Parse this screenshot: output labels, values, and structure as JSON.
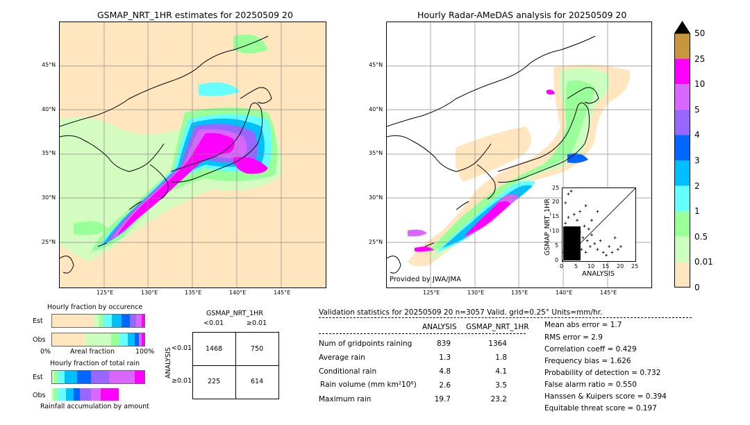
{
  "left_map": {
    "title": "GSMAP_NRT_1HR estimates for 20250509 20",
    "lat_labels": [
      "45°N",
      "40°N",
      "35°N",
      "30°N",
      "25°N"
    ],
    "lon_labels": [
      "125°E",
      "130°E",
      "135°E",
      "140°E",
      "145°E"
    ]
  },
  "right_map": {
    "title": "Hourly Radar-AMeDAS analysis for 20250509 20",
    "lat_labels": [
      "45°N",
      "40°N",
      "35°N",
      "30°N",
      "25°N"
    ],
    "lon_labels": [
      "125°E",
      "130°E",
      "135°E",
      "140°E",
      "145°E"
    ],
    "credit": "Provided by JWA/JMA"
  },
  "colorbar": {
    "labels": [
      "50",
      "25",
      "10",
      "5",
      "4",
      "3",
      "2",
      "1",
      "0.5",
      "0.01",
      "0"
    ],
    "colors": [
      "#c8963c",
      "#ff00ff",
      "#d966ff",
      "#9966ff",
      "#0066ff",
      "#00bfff",
      "#66ffff",
      "#99ff99",
      "#ccffbf",
      "#ffe6bf"
    ]
  },
  "scatter": {
    "ylabel": "GSMAP_NRT_1HR",
    "xlabel": "ANALYSIS",
    "ticks": [
      "0",
      "5",
      "10",
      "15",
      "20",
      "25"
    ]
  },
  "occurrence": {
    "title": "Hourly fraction by occurence",
    "rows": [
      "Est",
      "Obs"
    ],
    "axis_left": "0%",
    "axis_mid": "Areal fraction",
    "axis_right": "100%"
  },
  "total_rain": {
    "title": "Hourly fraction of total rain",
    "rows": [
      "Est",
      "Obs"
    ],
    "footer": "Rainfall accumulation by amount"
  },
  "contingency": {
    "title": "GSMAP_NRT_1HR",
    "col_labels": [
      "<0.01",
      "≥0.01"
    ],
    "row_axis": "ANALYSIS",
    "row_labels": [
      "<0.01",
      "≥0.01"
    ],
    "cells": [
      [
        "1468",
        "750"
      ],
      [
        "225",
        "614"
      ]
    ]
  },
  "validation": {
    "header": "Validation statistics for 20250509 20  n=3057 Valid. grid=0.25° Units=mm/hr.",
    "col_analysis": "ANALYSIS",
    "col_gsmap": "GSMAP_NRT_1HR",
    "rows": [
      {
        "label": "Num of gridpoints raining",
        "analysis": "839",
        "gsmap": "1364"
      },
      {
        "label": "Average rain",
        "analysis": "1.3",
        "gsmap": "1.8"
      },
      {
        "label": "Conditional rain",
        "analysis": "4.8",
        "gsmap": "4.1"
      },
      {
        "label": "Rain volume (mm km²10⁶)",
        "analysis": "2.6",
        "gsmap": "3.5"
      },
      {
        "label": "Maximum rain",
        "analysis": "19.7",
        "gsmap": "23.2"
      }
    ],
    "scores": [
      "Mean abs error =    1.7",
      "RMS error =    2.9",
      "Correlation coeff =  0.429",
      "Frequency bias =  1.626",
      "Probability of detection =  0.732",
      "False alarm ratio =  0.550",
      "Hanssen & Kuipers score =  0.394",
      "Equitable threat score =  0.197"
    ]
  },
  "chart_data": {
    "type": "scatter",
    "x_label": "ANALYSIS",
    "y_label": "GSMAP_NRT_1HR",
    "xlim": [
      0,
      25
    ],
    "ylim": [
      0,
      25
    ],
    "approximate_points": [
      [
        0.5,
        3
      ],
      [
        1,
        5
      ],
      [
        1.5,
        2
      ],
      [
        2,
        6
      ],
      [
        2.5,
        1
      ],
      [
        3,
        4
      ],
      [
        3.5,
        7
      ],
      [
        4,
        3
      ],
      [
        4.5,
        9
      ],
      [
        5,
        2
      ],
      [
        5.5,
        6
      ],
      [
        6,
        10
      ],
      [
        6.5,
        4
      ],
      [
        7,
        8
      ],
      [
        7.5,
        12
      ],
      [
        8,
        3
      ],
      [
        8.5,
        7
      ],
      [
        9,
        11
      ],
      [
        9.5,
        5
      ],
      [
        10,
        9
      ],
      [
        11,
        6
      ],
      [
        12,
        4
      ],
      [
        13,
        7
      ],
      [
        14,
        3
      ],
      [
        15,
        2
      ],
      [
        16,
        5
      ],
      [
        17,
        3
      ],
      [
        19,
        4
      ],
      [
        1,
        13
      ],
      [
        2,
        15
      ],
      [
        3,
        11
      ],
      [
        4,
        16
      ],
      [
        5,
        14
      ],
      [
        6,
        17
      ],
      [
        2,
        23
      ],
      [
        3,
        24
      ],
      [
        1,
        20
      ],
      [
        8,
        19
      ],
      [
        10,
        14
      ],
      [
        12,
        17
      ],
      [
        18,
        8
      ],
      [
        20,
        5
      ]
    ]
  }
}
